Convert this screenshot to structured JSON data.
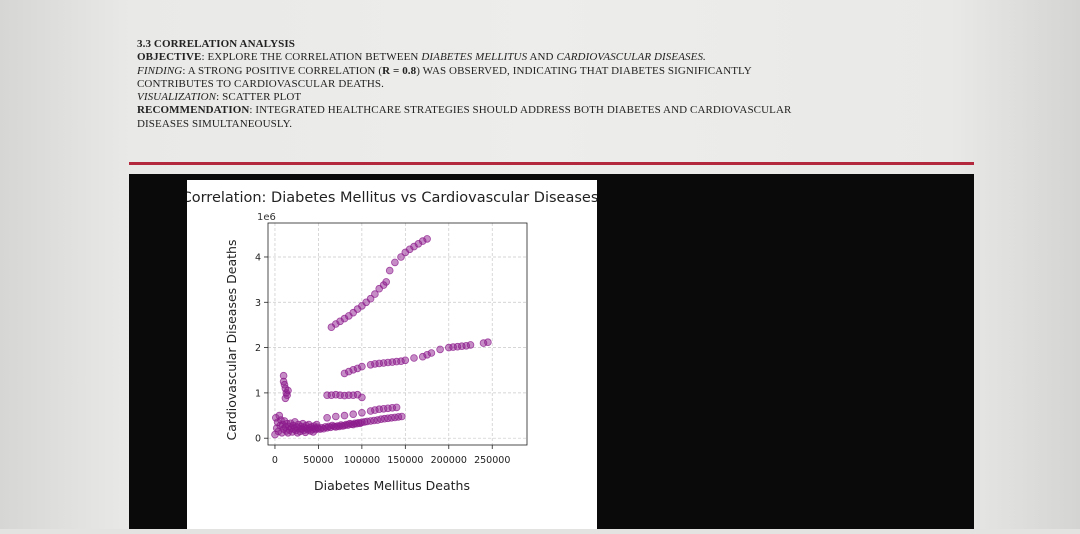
{
  "section": {
    "title": "3.3 CORRELATION ANALYSIS",
    "objective_label": "OBJECTIVE",
    "objective_text": ": EXPLORE THE CORRELATION BETWEEN ",
    "objective_em1": "DIABETES MELLITUS",
    "objective_and": " AND ",
    "objective_em2": "CARDIOVASCULAR DISEASES.",
    "finding_label": "FINDING",
    "finding_text_1": ": A STRONG POSITIVE CORRELATION (",
    "finding_r": "R = 0.8",
    "finding_text_2": ") WAS OBSERVED, INDICATING THAT DIABETES SIGNIFICANTLY",
    "finding_text_3": "CONTRIBUTES TO CARDIOVASCULAR DEATHS.",
    "visualization_label": "VISUALIZATION",
    "visualization_text": ": SCATTER PLOT",
    "recommendation_label": "RECOMMENDATION",
    "recommendation_text_1": ": INTEGRATED HEALTHCARE STRATEGIES SHOULD ADDRESS BOTH DIABETES AND CARDIOVASCULAR",
    "recommendation_text_2": "DISEASES SIMULTANEOUSLY."
  },
  "colors": {
    "rule": "#b3283d",
    "point": "#8b1a8b"
  },
  "chart_data": {
    "type": "scatter",
    "title": "Correlation: Diabetes Mellitus vs Cardiovascular Diseases",
    "xlabel": "Diabetes Mellitus Deaths",
    "ylabel": "Cardiovascular Diseases Deaths",
    "y_scale_label": "1e6",
    "xlim": [
      -8000,
      290000
    ],
    "ylim": [
      -150000,
      4750000
    ],
    "xticks": [
      0,
      50000,
      100000,
      150000,
      200000,
      250000
    ],
    "xtick_labels": [
      "0",
      "50000",
      "100000",
      "150000",
      "200000",
      "250000"
    ],
    "yticks": [
      0,
      1000000,
      2000000,
      3000000,
      4000000
    ],
    "ytick_labels": [
      "0",
      "1",
      "2",
      "3",
      "4"
    ],
    "grid": true,
    "series": [
      {
        "x": [
          65000,
          70000,
          75000,
          80000,
          85000,
          90000,
          95000,
          100000,
          105000,
          110000,
          115000,
          120000,
          125000,
          128000,
          132000,
          138000,
          145000,
          150000,
          155000,
          160000,
          165000,
          170000,
          175000
        ],
        "y": [
          2450000,
          2520000,
          2580000,
          2640000,
          2700000,
          2770000,
          2850000,
          2920000,
          3000000,
          3080000,
          3180000,
          3300000,
          3380000,
          3450000,
          3700000,
          3880000,
          4000000,
          4100000,
          4170000,
          4230000,
          4290000,
          4350000,
          4400000
        ]
      },
      {
        "x": [
          80000,
          85000,
          90000,
          95000,
          100000,
          110000,
          115000,
          120000,
          125000,
          130000,
          135000,
          140000,
          145000,
          150000,
          160000,
          170000,
          175000,
          180000,
          190000,
          200000,
          205000,
          210000,
          215000,
          220000,
          225000,
          240000,
          245000
        ],
        "y": [
          1430000,
          1470000,
          1510000,
          1540000,
          1580000,
          1620000,
          1640000,
          1650000,
          1660000,
          1670000,
          1680000,
          1690000,
          1700000,
          1720000,
          1770000,
          1800000,
          1840000,
          1880000,
          1960000,
          2000000,
          2010000,
          2020000,
          2030000,
          2040000,
          2060000,
          2100000,
          2120000
        ]
      },
      {
        "x": [
          10000,
          10000,
          11000,
          12000,
          13000,
          14000,
          12000,
          15000,
          60000,
          65000,
          70000,
          75000,
          80000,
          85000,
          90000,
          95000,
          100000,
          60000,
          70000,
          80000,
          90000,
          100000,
          110000,
          115000,
          120000,
          125000,
          130000,
          135000,
          140000
        ],
        "y": [
          1380000,
          1250000,
          1180000,
          1100000,
          1000000,
          950000,
          880000,
          1050000,
          950000,
          950000,
          960000,
          950000,
          940000,
          950000,
          950000,
          960000,
          900000,
          450000,
          480000,
          500000,
          530000,
          560000,
          600000,
          620000,
          640000,
          650000,
          660000,
          670000,
          680000
        ]
      },
      {
        "x": [
          0,
          1000,
          2000,
          3000,
          4000,
          5000,
          6000,
          7000,
          8000,
          9000,
          10000,
          11000,
          12000,
          13000,
          14000,
          15000,
          16000,
          17000,
          18000,
          19000,
          20000,
          21000,
          22000,
          23000,
          24000,
          25000,
          26000,
          27000,
          28000,
          29000,
          30000,
          31000,
          32000,
          33000,
          34000,
          35000,
          36000,
          37000,
          38000,
          39000,
          40000,
          41000,
          42000,
          43000,
          44000,
          45000,
          46000,
          47000,
          48000,
          49000,
          50000,
          52000,
          54000,
          56000,
          58000,
          60000,
          62000,
          64000,
          66000,
          68000,
          70000,
          72000,
          74000,
          76000,
          78000,
          80000,
          82000,
          84000,
          86000,
          88000,
          90000,
          92000,
          94000,
          96000,
          98000,
          100000,
          103000,
          106000,
          110000,
          114000,
          118000,
          122000,
          126000,
          130000,
          134000,
          138000,
          142000,
          146000
        ],
        "y": [
          80000,
          450000,
          220000,
          350000,
          150000,
          500000,
          280000,
          400000,
          120000,
          300000,
          200000,
          380000,
          250000,
          160000,
          320000,
          120000,
          260000,
          180000,
          330000,
          220000,
          140000,
          280000,
          200000,
          360000,
          170000,
          250000,
          120000,
          300000,
          210000,
          150000,
          260000,
          200000,
          320000,
          170000,
          240000,
          130000,
          280000,
          210000,
          180000,
          300000,
          230000,
          160000,
          250000,
          200000,
          140000,
          270000,
          220000,
          190000,
          300000,
          240000,
          210000,
          200000,
          230000,
          210000,
          250000,
          230000,
          260000,
          240000,
          280000,
          260000,
          250000,
          270000,
          260000,
          290000,
          270000,
          280000,
          300000,
          290000,
          320000,
          310000,
          300000,
          330000,
          320000,
          340000,
          330000,
          350000,
          360000,
          370000,
          380000,
          390000,
          400000,
          420000,
          430000,
          440000,
          450000,
          460000,
          470000,
          480000
        ]
      }
    ]
  }
}
